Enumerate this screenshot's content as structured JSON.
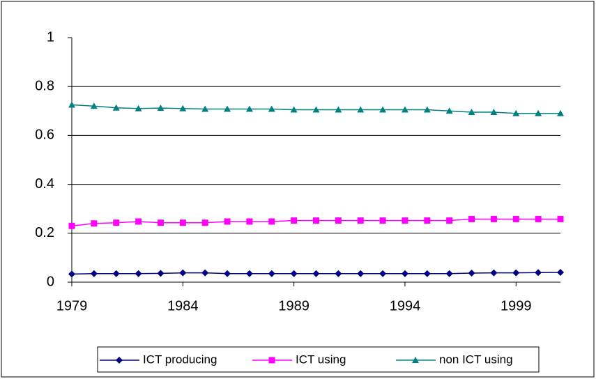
{
  "chart_data": {
    "type": "line",
    "x": [
      1979,
      1980,
      1981,
      1982,
      1983,
      1984,
      1985,
      1986,
      1987,
      1988,
      1989,
      1990,
      1991,
      1992,
      1993,
      1994,
      1995,
      1996,
      1997,
      1998,
      1999,
      2000,
      2001
    ],
    "series": [
      {
        "name": "ICT producing",
        "color": "#000080",
        "marker": "diamond",
        "values": [
          0.033,
          0.035,
          0.035,
          0.035,
          0.036,
          0.038,
          0.038,
          0.035,
          0.035,
          0.035,
          0.035,
          0.035,
          0.035,
          0.035,
          0.035,
          0.035,
          0.035,
          0.035,
          0.037,
          0.038,
          0.038,
          0.039,
          0.04
        ]
      },
      {
        "name": "ICT using",
        "color": "#ff00ff",
        "marker": "square",
        "values": [
          0.23,
          0.24,
          0.243,
          0.248,
          0.243,
          0.243,
          0.243,
          0.248,
          0.248,
          0.248,
          0.252,
          0.252,
          0.252,
          0.252,
          0.252,
          0.252,
          0.252,
          0.252,
          0.258,
          0.258,
          0.258,
          0.258,
          0.258
        ]
      },
      {
        "name": "non ICT using",
        "color": "#008080",
        "marker": "triangle",
        "values": [
          0.725,
          0.72,
          0.713,
          0.71,
          0.712,
          0.71,
          0.708,
          0.708,
          0.708,
          0.708,
          0.705,
          0.705,
          0.705,
          0.705,
          0.705,
          0.705,
          0.705,
          0.7,
          0.695,
          0.695,
          0.69,
          0.69,
          0.69
        ]
      }
    ],
    "xlim": [
      1979,
      2001
    ],
    "xticks": [
      1979,
      1984,
      1989,
      1994,
      1999
    ],
    "ylim": [
      0,
      1
    ],
    "yticks": [
      0,
      0.2,
      0.4,
      0.6,
      0.8,
      1
    ],
    "grid": true,
    "legend": "bottom"
  }
}
